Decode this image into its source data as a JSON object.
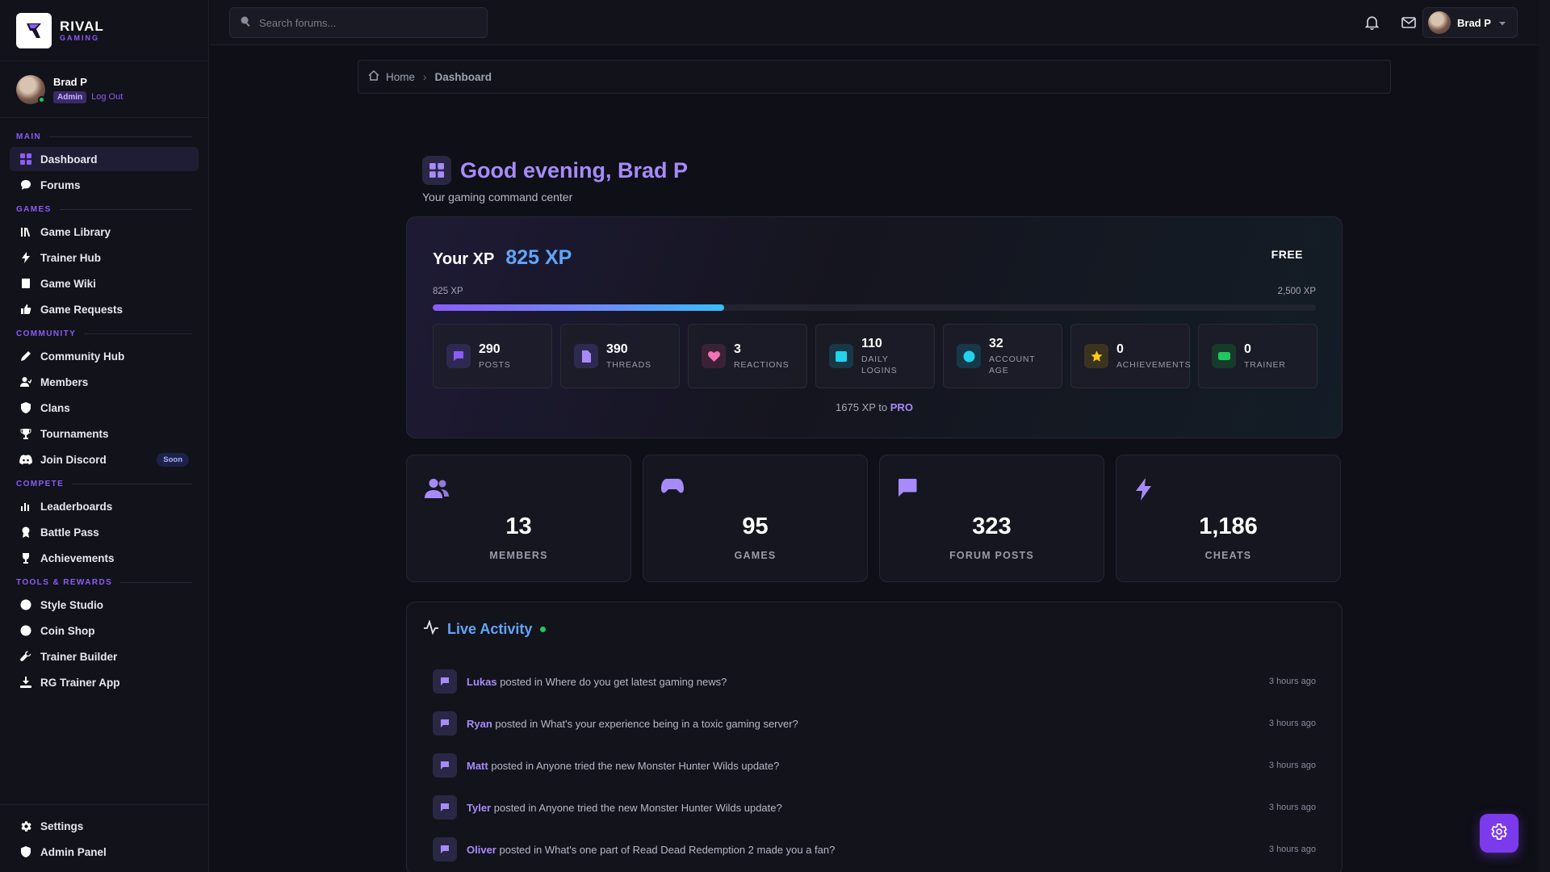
{
  "brand": {
    "name": "RIVAL",
    "sub": "GAMING"
  },
  "user": {
    "name": "Brad P",
    "role": "Admin",
    "logout": "Log Out"
  },
  "sidebar": {
    "sections": [
      {
        "label": "MAIN",
        "items": [
          {
            "label": "Dashboard",
            "icon": "grid-icon",
            "active": true
          },
          {
            "label": "Forums",
            "icon": "chat-icon"
          }
        ]
      },
      {
        "label": "GAMES",
        "items": [
          {
            "label": "Game Library",
            "icon": "library-icon"
          },
          {
            "label": "Trainer Hub",
            "icon": "bolt-icon"
          },
          {
            "label": "Game Wiki",
            "icon": "book-icon"
          },
          {
            "label": "Game Requests",
            "icon": "thumbs-up-icon"
          }
        ]
      },
      {
        "label": "COMMUNITY",
        "items": [
          {
            "label": "Community Hub",
            "icon": "pencil-icon"
          },
          {
            "label": "Members",
            "icon": "user-icon"
          },
          {
            "label": "Clans",
            "icon": "shield-icon"
          },
          {
            "label": "Tournaments",
            "icon": "trophy-icon"
          },
          {
            "label": "Join Discord",
            "icon": "discord-icon",
            "badge": "Soon"
          }
        ]
      },
      {
        "label": "COMPETE",
        "items": [
          {
            "label": "Leaderboards",
            "icon": "bar-chart-icon"
          },
          {
            "label": "Battle Pass",
            "icon": "ribbon-icon"
          },
          {
            "label": "Achievements",
            "icon": "trophy-icon"
          }
        ]
      },
      {
        "label": "TOOLS & REWARDS",
        "items": [
          {
            "label": "Style Studio",
            "icon": "palette-icon"
          },
          {
            "label": "Coin Shop",
            "icon": "coin-icon"
          },
          {
            "label": "Trainer Builder",
            "icon": "wrench-icon"
          },
          {
            "label": "RG Trainer App",
            "icon": "download-icon"
          }
        ]
      }
    ],
    "bottom": [
      {
        "label": "Settings",
        "icon": "gear-icon"
      },
      {
        "label": "Admin Panel",
        "icon": "shield-icon"
      }
    ]
  },
  "topbar": {
    "search_placeholder": "Search forums...",
    "user_name": "Brad P"
  },
  "breadcrumb": {
    "home": "Home",
    "current": "Dashboard"
  },
  "greeting": {
    "title": "Good evening, Brad P",
    "subtitle": "Your gaming command center"
  },
  "xp": {
    "label": "Your XP",
    "value": "825 XP",
    "tier": "FREE",
    "range_min": "825 XP",
    "range_max": "2,500 XP",
    "progress_fraction": 0.33,
    "to_next_prefix": "1675 XP to",
    "to_next_tier": "PRO",
    "stats": [
      {
        "num": "290",
        "label": "POSTS",
        "icon": "chat-icon",
        "color": "#8b5cf6",
        "bg": "#2e2950"
      },
      {
        "num": "390",
        "label": "THREADS",
        "icon": "document-icon",
        "color": "#a78bfa",
        "bg": "#2e2950"
      },
      {
        "num": "3",
        "label": "REACTIONS",
        "icon": "heart-icon",
        "color": "#f472b6",
        "bg": "#3a2236"
      },
      {
        "num": "110",
        "label": "DAILY LOGINS",
        "icon": "calendar-icon",
        "color": "#22d3ee",
        "bg": "#173846"
      },
      {
        "num": "32",
        "label": "ACCOUNT AGE",
        "icon": "clock-icon",
        "color": "#22d3ee",
        "bg": "#173846"
      },
      {
        "num": "0",
        "label": "ACHIEVEMENTS",
        "icon": "star-icon",
        "color": "#facc15",
        "bg": "#3a3320"
      },
      {
        "num": "0",
        "label": "TRAINER",
        "icon": "gamepad-icon",
        "color": "#22c55e",
        "bg": "#173a2a"
      }
    ]
  },
  "totals": [
    {
      "num": "13",
      "label": "MEMBERS",
      "icon": "users-icon"
    },
    {
      "num": "95",
      "label": "GAMES",
      "icon": "gamepad-icon"
    },
    {
      "num": "323",
      "label": "FORUM POSTS",
      "icon": "message-icon"
    },
    {
      "num": "1,186",
      "label": "CHEATS",
      "icon": "bolt-icon"
    }
  ],
  "activity": {
    "title": "Live Activity",
    "items": [
      {
        "user": "Lukas",
        "verb": "posted in",
        "topic": "Where do you get latest gaming news?",
        "time": "3 hours ago"
      },
      {
        "user": "Ryan",
        "verb": "posted in",
        "topic": "What's your experience being in a toxic gaming server?",
        "time": "3 hours ago"
      },
      {
        "user": "Matt",
        "verb": "posted in",
        "topic": "Anyone tried the new Monster Hunter Wilds update?",
        "time": "3 hours ago"
      },
      {
        "user": "Tyler",
        "verb": "posted in",
        "topic": "Anyone tried the new Monster Hunter Wilds update?",
        "time": "3 hours ago"
      },
      {
        "user": "Oliver",
        "verb": "posted in",
        "topic": "What's one part of Read Dead Redemption 2 made you a fan?",
        "time": "3 hours ago"
      }
    ]
  },
  "colors": {
    "accent": "#8b5cf6",
    "accent_light": "#a78bfa",
    "blue": "#60a5fa",
    "bg": "#0f0f17"
  }
}
